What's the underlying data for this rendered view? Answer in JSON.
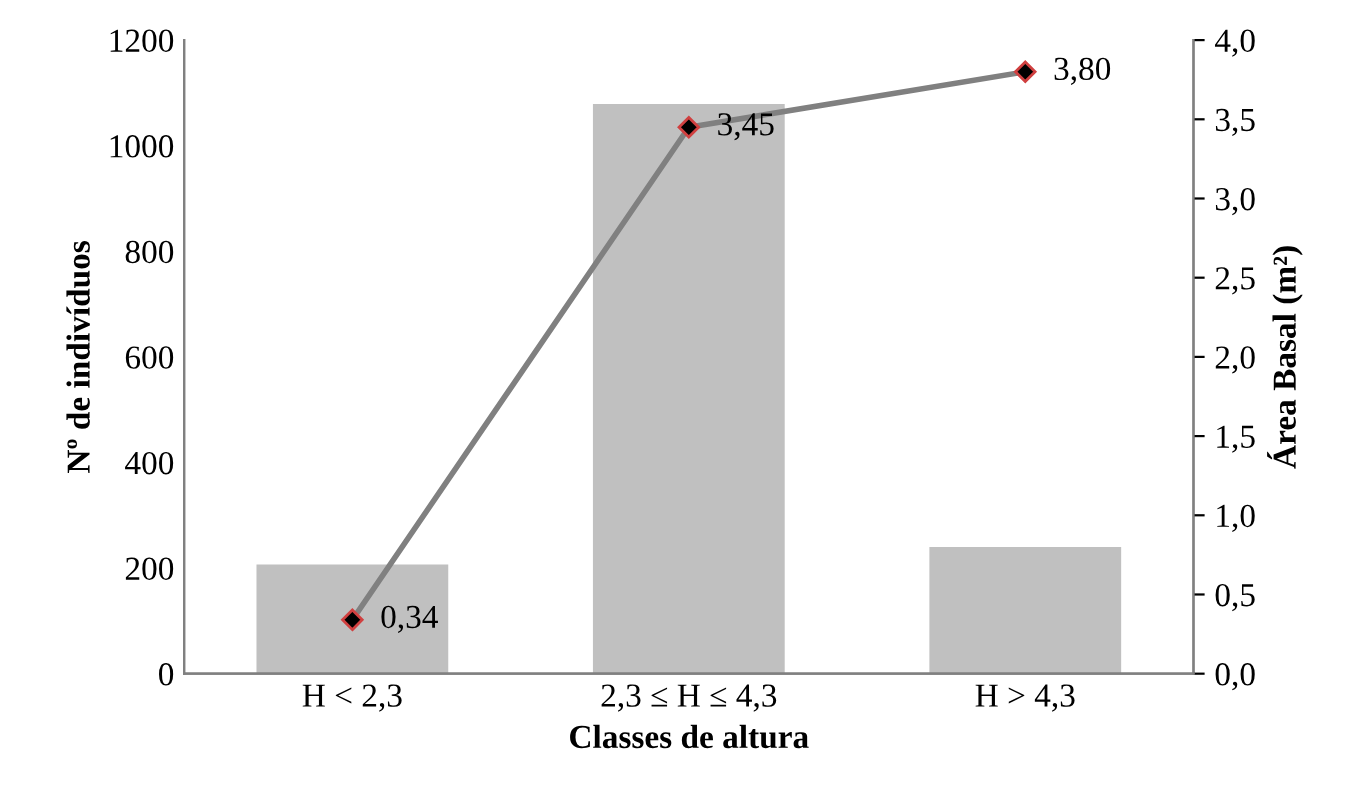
{
  "chart_data": {
    "type": "bar",
    "xlabel": "Classes de altura",
    "ylabel": "Nº de indivíduos",
    "y2label": "Área Basal (m²)",
    "categories": [
      "H < 2,3",
      "2,3 ≤ H ≤ 4,3",
      "H > 4,3"
    ],
    "series": [
      {
        "color": "#c0c0c0",
        "values": [
          207,
          1079,
          240
        ]
      },
      {
        "type": "line",
        "axis": "y2",
        "color": "#808080",
        "marker": "diamond",
        "values": [
          0.34,
          3.45,
          3.8
        ],
        "value_labels": [
          "0,34",
          "3,45",
          "3,80"
        ]
      }
    ],
    "ylim": [
      0,
      1200
    ],
    "yticks": [
      0,
      200,
      400,
      600,
      800,
      1000,
      1200
    ],
    "y2lim": [
      0,
      4
    ],
    "y2ticks": [
      {
        "value": 0,
        "label": "0,0"
      },
      {
        "value": 0.5,
        "label": "0,5"
      },
      {
        "value": 1,
        "label": "1,0"
      },
      {
        "value": 1.5,
        "label": "1,5"
      },
      {
        "value": 2,
        "label": "2,0"
      },
      {
        "value": 2.5,
        "label": "2,5"
      },
      {
        "value": 3,
        "label": "3,0"
      },
      {
        "value": 3.5,
        "label": "3,5"
      },
      {
        "value": 4,
        "label": "4,0"
      }
    ],
    "grid": false
  }
}
